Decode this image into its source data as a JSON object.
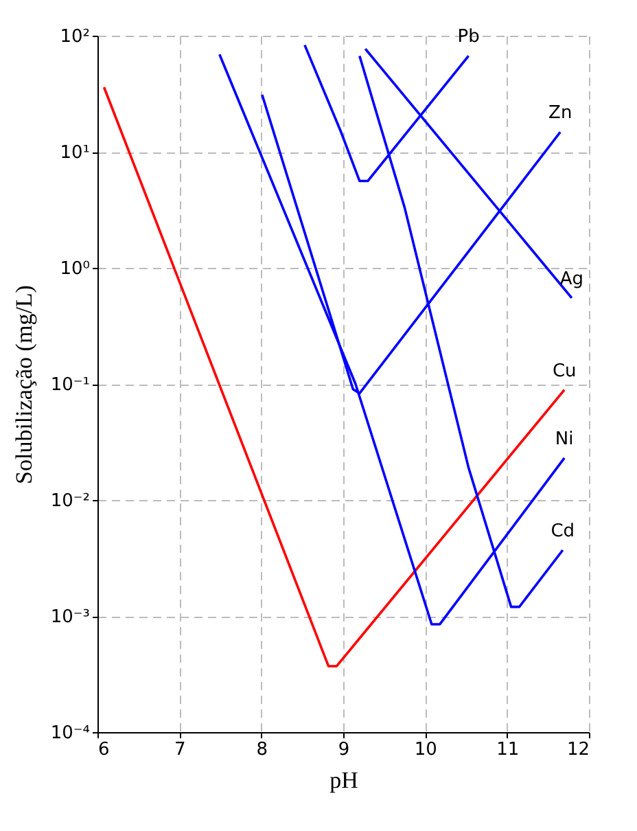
{
  "chart_data": {
    "type": "line",
    "xlabel": "pH",
    "ylabel": "Solubilização (mg/L)",
    "log": "y",
    "grid": true,
    "legend": false,
    "marker": "none",
    "line_style": "solid",
    "xlim": [
      6,
      12
    ],
    "xticks": [
      6,
      7,
      8,
      9,
      10,
      11,
      12
    ],
    "ylim": [
      0.0001,
      100
    ],
    "yticks": [
      {
        "value": 100,
        "label": "10²"
      },
      {
        "value": 10,
        "label": "10¹"
      },
      {
        "value": 1,
        "label": "10⁰"
      },
      {
        "value": 0.1,
        "label": "10⁻¹"
      },
      {
        "value": 0.01,
        "label": "10⁻²"
      },
      {
        "value": 0.001,
        "label": "10⁻³"
      },
      {
        "value": 0.0001,
        "label": "10⁻⁴"
      }
    ],
    "series": [
      {
        "name": "Pb",
        "color": "#0000ff",
        "x": [
          8.53,
          8.97,
          9.2,
          9.3,
          10.53
        ],
        "values": [
          83,
          15,
          5.6,
          5.6,
          67
        ]
      },
      {
        "name": "Zn",
        "color": "#0000ff",
        "x": [
          8.01,
          9.12,
          9.2,
          11.65
        ],
        "values": [
          31,
          0.09,
          0.083,
          14.8
        ]
      },
      {
        "name": "Ag",
        "color": "#0000ff",
        "x": [
          9.27,
          11.79
        ],
        "values": [
          77,
          0.55
        ]
      },
      {
        "name": "Cu",
        "color": "#ff0000",
        "x": [
          6.08,
          8.82,
          8.92,
          11.7
        ],
        "values": [
          36,
          0.00037,
          0.00037,
          0.089
        ]
      },
      {
        "name": "Ni",
        "color": "#0000ff",
        "x": [
          7.49,
          9.15,
          10.08,
          10.18,
          11.7
        ],
        "values": [
          69,
          0.1,
          0.00085,
          0.00085,
          0.023
        ]
      },
      {
        "name": "Cd",
        "color": "#0000ff",
        "x": [
          9.2,
          9.75,
          10.53,
          11.05,
          11.15,
          11.68
        ],
        "values": [
          67,
          3.3,
          0.019,
          0.0012,
          0.0012,
          0.0037
        ]
      }
    ]
  }
}
